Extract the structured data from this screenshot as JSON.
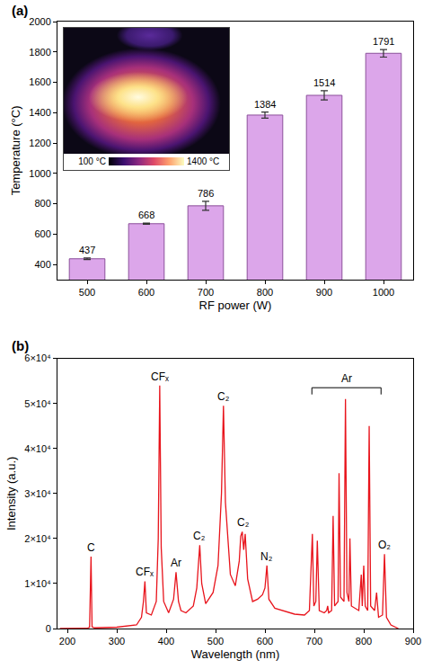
{
  "chart_data": [
    {
      "label": "(a)",
      "type": "bar",
      "x_label": "RF power (W)",
      "y_label": "Temperature (°C)",
      "categories": [
        "500",
        "600",
        "700",
        "800",
        "900",
        "1000"
      ],
      "values": [
        437,
        668,
        786,
        1384,
        1514,
        1791
      ],
      "errors": [
        5,
        4,
        30,
        20,
        30,
        25
      ],
      "color": "#dca6ea",
      "ylim": [
        300,
        2000
      ],
      "yticks": [
        400,
        600,
        800,
        1000,
        1200,
        1400,
        1600,
        1800,
        2000
      ],
      "data_labels": true,
      "inset": {
        "type": "image",
        "colorbar_range": [
          100,
          1400
        ],
        "colorbar_ticks": [
          {
            "value": 100,
            "label": "100 °C"
          },
          {
            "value": 1400,
            "label": "1400 °C"
          }
        ]
      }
    },
    {
      "label": "(b)",
      "type": "line",
      "x_label": "Wavelength (nm)",
      "y_label": "Intensity (a.u.)",
      "x": [
        185,
        240,
        245,
        247.9,
        250,
        255,
        300,
        340,
        350,
        354,
        357,
        360,
        370,
        380,
        384,
        387,
        390,
        395,
        405,
        415,
        420,
        425,
        430,
        440,
        455,
        462,
        468,
        472,
        480,
        495,
        505,
        512,
        516,
        520,
        530,
        540,
        548,
        551,
        554,
        557,
        560,
        565,
        575,
        585,
        595,
        600,
        604,
        608,
        620,
        640,
        660,
        680,
        690,
        696,
        699,
        703,
        706,
        710,
        720,
        725,
        727,
        729,
        735,
        738,
        741,
        748,
        750,
        753,
        760,
        763,
        766,
        770,
        772,
        775,
        790,
        795,
        797,
        800,
        803,
        808,
        811,
        814,
        822,
        826,
        830,
        838,
        842,
        846,
        855,
        870
      ],
      "values": [
        0,
        50,
        300,
        16000,
        400,
        150,
        300,
        800,
        2500,
        6000,
        10500,
        3500,
        3000,
        6000,
        20000,
        54000,
        18000,
        6000,
        3500,
        6500,
        12500,
        6000,
        4000,
        3500,
        5000,
        9000,
        18500,
        10000,
        5500,
        8000,
        14000,
        30000,
        49500,
        28000,
        12000,
        9500,
        15000,
        20500,
        21500,
        17500,
        21000,
        11000,
        6000,
        6500,
        7500,
        9000,
        14000,
        6500,
        4500,
        3800,
        3200,
        3000,
        4000,
        21000,
        5000,
        6000,
        19500,
        4000,
        3500,
        4000,
        5000,
        3500,
        4000,
        25000,
        5000,
        6000,
        34500,
        7000,
        6000,
        51000,
        8000,
        6000,
        20000,
        5000,
        4000,
        12000,
        5000,
        14000,
        5000,
        4000,
        45000,
        5000,
        4000,
        8000,
        2500,
        3000,
        16500,
        2500,
        800,
        0
      ],
      "color": "#e8141c",
      "xlim": [
        180,
        900
      ],
      "xticks": [
        200,
        300,
        400,
        500,
        600,
        700,
        800,
        900
      ],
      "ylim": [
        0,
        60000
      ],
      "yticks": [
        0,
        {
          "value": 10000,
          "label": "1×10⁴"
        },
        {
          "value": 20000,
          "label": "2×10⁴"
        },
        {
          "value": 30000,
          "label": "3×10⁴"
        },
        {
          "value": 40000,
          "label": "4×10⁴"
        },
        {
          "value": 50000,
          "label": "5×10⁴"
        },
        {
          "value": 60000,
          "label": "6×10⁴"
        }
      ],
      "annotations": [
        {
          "text": "C",
          "x": 247.9,
          "y": 16000
        },
        {
          "text": "CFₓ",
          "x": 357,
          "y": 10500
        },
        {
          "text": "CFₓ",
          "x": 387,
          "y": 54000
        },
        {
          "text": "Ar",
          "x": 420,
          "y": 12500
        },
        {
          "text": "C₂",
          "x": 468,
          "y": 18500
        },
        {
          "text": "C₂",
          "x": 516,
          "y": 49500
        },
        {
          "text": "C₂",
          "x": 556,
          "y": 21500
        },
        {
          "text": "N₂",
          "x": 604,
          "y": 14000
        },
        {
          "text": "O₂",
          "x": 842,
          "y": 16500
        },
        {
          "text": "Ar",
          "x": [
            695,
            835
          ],
          "y": 53500
        }
      ]
    }
  ]
}
